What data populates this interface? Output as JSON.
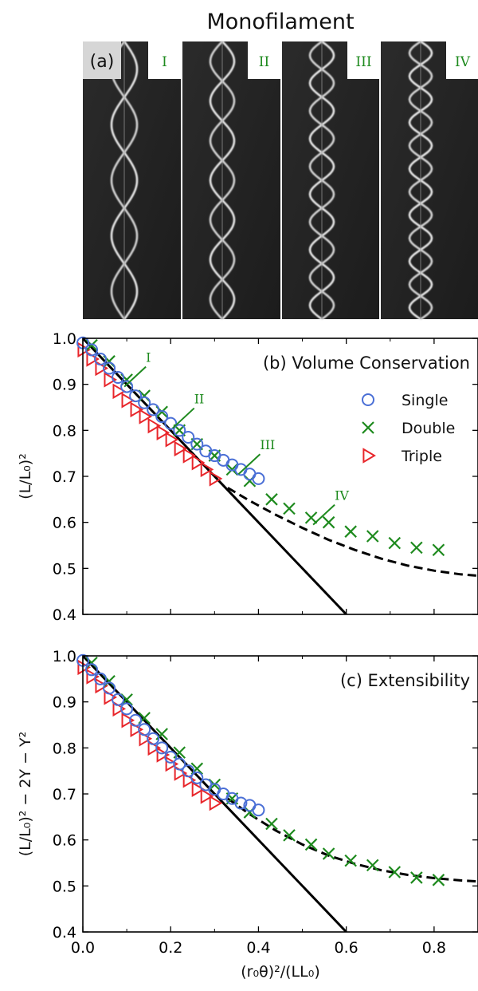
{
  "title": "Monofilament",
  "panel_a": {
    "label": "(a)",
    "frames": [
      "I",
      "II",
      "III",
      "IV"
    ]
  },
  "colors": {
    "single": "#4a6fd6",
    "double": "#1e8a1e",
    "triple": "#e8262b",
    "annotation": "#1e8a1e",
    "theory": "#000000"
  },
  "chart_data": [
    {
      "type": "scatter",
      "panel_label": "(b) Volume Conservation",
      "xlabel": "",
      "ylabel": "(L/L₀)²",
      "xlim": [
        0,
        0.9
      ],
      "ylim": [
        0.4,
        1.0
      ],
      "x_ticks": [
        0.0,
        0.2,
        0.4,
        0.6,
        0.8
      ],
      "y_ticks": [
        0.4,
        0.5,
        0.6,
        0.7,
        0.8,
        0.9,
        1.0
      ],
      "x_tick_labels_shown": false,
      "y_tick_labels": [
        "0.4",
        "0.5",
        "0.6",
        "0.7",
        "0.8",
        "0.9",
        "1.0"
      ],
      "legend_position": "right, below panel label",
      "legend": [
        "Single",
        "Double",
        "Triple"
      ],
      "series": [
        {
          "name": "Single",
          "marker": "circle",
          "x": [
            0.0,
            0.02,
            0.04,
            0.06,
            0.08,
            0.1,
            0.12,
            0.14,
            0.16,
            0.18,
            0.2,
            0.22,
            0.24,
            0.26,
            0.28,
            0.3,
            0.32,
            0.34,
            0.36,
            0.38,
            0.4
          ],
          "y": [
            0.99,
            0.975,
            0.955,
            0.935,
            0.915,
            0.895,
            0.875,
            0.86,
            0.845,
            0.83,
            0.815,
            0.8,
            0.785,
            0.77,
            0.755,
            0.745,
            0.735,
            0.725,
            0.715,
            0.705,
            0.695
          ]
        },
        {
          "name": "Double",
          "marker": "x",
          "x": [
            0.02,
            0.06,
            0.1,
            0.14,
            0.18,
            0.22,
            0.26,
            0.3,
            0.34,
            0.38,
            0.43,
            0.47,
            0.52,
            0.56,
            0.61,
            0.66,
            0.71,
            0.76,
            0.81
          ],
          "y": [
            0.985,
            0.95,
            0.91,
            0.875,
            0.84,
            0.8,
            0.77,
            0.745,
            0.715,
            0.69,
            0.65,
            0.63,
            0.61,
            0.6,
            0.58,
            0.57,
            0.555,
            0.545,
            0.54
          ]
        },
        {
          "name": "Triple",
          "marker": "triangle-right",
          "x": [
            0.0,
            0.02,
            0.04,
            0.06,
            0.08,
            0.1,
            0.12,
            0.14,
            0.16,
            0.18,
            0.2,
            0.22,
            0.24,
            0.26,
            0.28,
            0.3
          ],
          "y": [
            0.975,
            0.955,
            0.935,
            0.91,
            0.885,
            0.865,
            0.845,
            0.83,
            0.81,
            0.795,
            0.78,
            0.76,
            0.745,
            0.73,
            0.715,
            0.695
          ]
        }
      ],
      "lines": [
        {
          "style": "solid",
          "x": [
            0.0,
            0.6
          ],
          "y": [
            1.0,
            0.4
          ]
        },
        {
          "style": "dashed",
          "x": [
            0.33,
            0.38,
            0.44,
            0.5,
            0.56,
            0.62,
            0.68,
            0.74,
            0.8,
            0.86,
            0.9
          ],
          "y": [
            0.675,
            0.647,
            0.616,
            0.588,
            0.562,
            0.54,
            0.521,
            0.506,
            0.495,
            0.487,
            0.484
          ]
        }
      ],
      "annotations": [
        {
          "text": "I",
          "x": 0.1,
          "y": 0.9
        },
        {
          "text": "II",
          "x": 0.21,
          "y": 0.81
        },
        {
          "text": "III",
          "x": 0.36,
          "y": 0.71
        },
        {
          "text": "IV",
          "x": 0.53,
          "y": 0.6
        }
      ]
    },
    {
      "type": "scatter",
      "panel_label": "(c) Extensibility",
      "xlabel": "(r₀θ)²/(LL₀)",
      "ylabel": "(L/L₀)² − 2Y − Y²",
      "xlim": [
        0,
        0.9
      ],
      "ylim": [
        0.4,
        1.0
      ],
      "x_ticks": [
        0.0,
        0.2,
        0.4,
        0.6,
        0.8
      ],
      "y_ticks": [
        0.4,
        0.5,
        0.6,
        0.7,
        0.8,
        0.9,
        1.0
      ],
      "x_tick_labels": [
        "0.0",
        "0.2",
        "0.4",
        "0.6",
        "0.8"
      ],
      "y_tick_labels": [
        "0.4",
        "0.5",
        "0.6",
        "0.7",
        "0.8",
        "0.9",
        "1.0"
      ],
      "series": [
        {
          "name": "Single",
          "marker": "circle",
          "x": [
            0.0,
            0.02,
            0.04,
            0.06,
            0.08,
            0.1,
            0.12,
            0.14,
            0.16,
            0.18,
            0.2,
            0.22,
            0.24,
            0.26,
            0.28,
            0.3,
            0.32,
            0.34,
            0.36,
            0.38,
            0.4
          ],
          "y": [
            0.99,
            0.97,
            0.95,
            0.93,
            0.905,
            0.885,
            0.86,
            0.84,
            0.82,
            0.8,
            0.78,
            0.765,
            0.75,
            0.735,
            0.72,
            0.71,
            0.7,
            0.69,
            0.68,
            0.675,
            0.665
          ]
        },
        {
          "name": "Double",
          "marker": "x",
          "x": [
            0.02,
            0.06,
            0.1,
            0.14,
            0.18,
            0.22,
            0.26,
            0.3,
            0.34,
            0.38,
            0.43,
            0.47,
            0.52,
            0.56,
            0.61,
            0.66,
            0.71,
            0.76,
            0.81
          ],
          "y": [
            0.985,
            0.945,
            0.905,
            0.865,
            0.83,
            0.79,
            0.755,
            0.72,
            0.69,
            0.66,
            0.635,
            0.61,
            0.59,
            0.57,
            0.555,
            0.545,
            0.53,
            0.518,
            0.513
          ]
        },
        {
          "name": "Triple",
          "marker": "triangle-right",
          "x": [
            0.0,
            0.02,
            0.04,
            0.06,
            0.08,
            0.1,
            0.12,
            0.14,
            0.16,
            0.18,
            0.2,
            0.22,
            0.24,
            0.26,
            0.28,
            0.3
          ],
          "y": [
            0.975,
            0.955,
            0.935,
            0.91,
            0.885,
            0.86,
            0.84,
            0.82,
            0.8,
            0.785,
            0.765,
            0.745,
            0.73,
            0.71,
            0.695,
            0.68
          ]
        }
      ],
      "lines": [
        {
          "style": "solid",
          "x": [
            0.0,
            0.6
          ],
          "y": [
            1.0,
            0.4
          ]
        },
        {
          "style": "dashed",
          "x": [
            0.33,
            0.38,
            0.44,
            0.5,
            0.56,
            0.62,
            0.68,
            0.74,
            0.8,
            0.86,
            0.9
          ],
          "y": [
            0.69,
            0.656,
            0.62,
            0.59,
            0.566,
            0.548,
            0.534,
            0.524,
            0.517,
            0.512,
            0.51
          ]
        }
      ]
    }
  ]
}
